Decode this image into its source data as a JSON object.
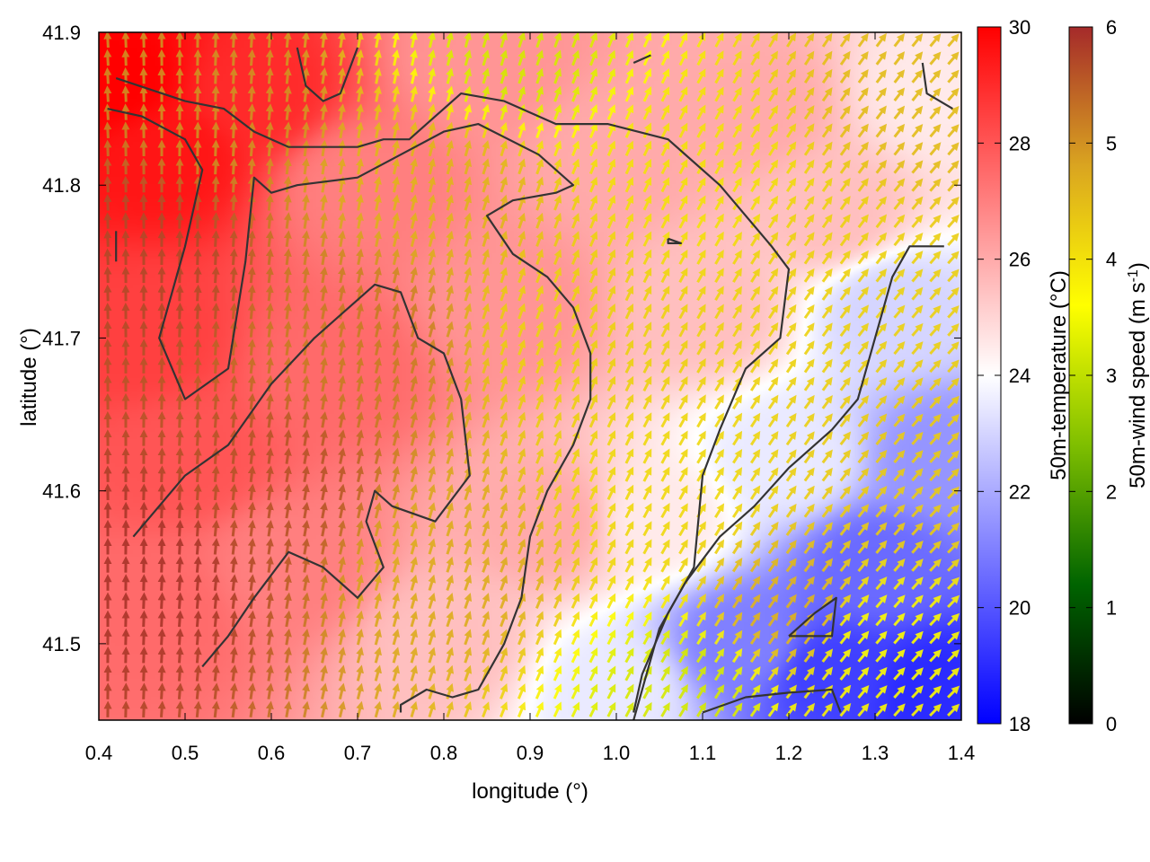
{
  "chart_data": {
    "type": "heatmap",
    "title": "",
    "xlabel": "longitude (°)",
    "ylabel": "latitude (°)",
    "xlim": [
      0.4,
      1.4
    ],
    "ylim": [
      41.45,
      41.9
    ],
    "x_ticks": [
      "0.4",
      "0.5",
      "0.6",
      "0.7",
      "0.8",
      "0.9",
      "1.0",
      "1.1",
      "1.2",
      "1.3",
      "1.4"
    ],
    "y_ticks": [
      "41.5",
      "41.6",
      "41.7",
      "41.8",
      "41.9"
    ],
    "grid": false,
    "overlays": [
      "contour lines",
      "wind vectors colored by speed"
    ],
    "temperature_colorbar": {
      "label": "50m-temperature (°C)",
      "range": [
        18,
        30
      ],
      "ticks": [
        "18",
        "20",
        "22",
        "24",
        "26",
        "28",
        "30"
      ],
      "colors": [
        "#0000ff",
        "#ffffff",
        "#ff0000"
      ]
    },
    "windspeed_colorbar": {
      "label_main": "50m-wind speed (m s",
      "label_sup": "-1",
      "label_end": ")",
      "range": [
        0,
        6
      ],
      "ticks": [
        "0",
        "1",
        "2",
        "3",
        "4",
        "5",
        "6"
      ],
      "colors": [
        "#000000",
        "#006400",
        "#7fbf00",
        "#ffff00",
        "#daa520",
        "#a52a2a"
      ]
    },
    "temperature_field_anchors": [
      {
        "lon": 0.42,
        "lat": 41.87,
        "t": 30.0
      },
      {
        "lon": 0.48,
        "lat": 41.82,
        "t": 29.5
      },
      {
        "lon": 0.58,
        "lat": 41.86,
        "t": 29.0
      },
      {
        "lon": 0.45,
        "lat": 41.7,
        "t": 28.5
      },
      {
        "lon": 0.5,
        "lat": 41.62,
        "t": 28.0
      },
      {
        "lon": 0.47,
        "lat": 41.52,
        "t": 27.5
      },
      {
        "lon": 0.62,
        "lat": 41.55,
        "t": 27.0
      },
      {
        "lon": 0.7,
        "lat": 41.8,
        "t": 27.0
      },
      {
        "lon": 0.68,
        "lat": 41.68,
        "t": 27.5
      },
      {
        "lon": 0.85,
        "lat": 41.88,
        "t": 26.5
      },
      {
        "lon": 0.88,
        "lat": 41.72,
        "t": 26.5
      },
      {
        "lon": 1.0,
        "lat": 41.82,
        "t": 26.0
      },
      {
        "lon": 0.92,
        "lat": 41.58,
        "t": 26.0
      },
      {
        "lon": 0.8,
        "lat": 41.5,
        "t": 25.5
      },
      {
        "lon": 1.1,
        "lat": 41.72,
        "t": 25.5
      },
      {
        "lon": 1.15,
        "lat": 41.85,
        "t": 26.0
      },
      {
        "lon": 1.25,
        "lat": 41.78,
        "t": 25.5
      },
      {
        "lon": 1.05,
        "lat": 41.58,
        "t": 24.5
      },
      {
        "lon": 1.0,
        "lat": 41.47,
        "t": 23.5
      },
      {
        "lon": 1.2,
        "lat": 41.62,
        "t": 23.5
      },
      {
        "lon": 1.32,
        "lat": 41.72,
        "t": 23.0
      },
      {
        "lon": 1.38,
        "lat": 41.62,
        "t": 21.5
      },
      {
        "lon": 1.3,
        "lat": 41.55,
        "t": 20.5
      },
      {
        "lon": 1.25,
        "lat": 41.48,
        "t": 19.5
      },
      {
        "lon": 1.15,
        "lat": 41.5,
        "t": 21.0
      },
      {
        "lon": 1.37,
        "lat": 41.47,
        "t": 19.0
      },
      {
        "lon": 1.38,
        "lat": 41.86,
        "t": 24.5
      }
    ],
    "wind_speed_anchors": [
      {
        "lon": 0.45,
        "lat": 41.55,
        "s": 5.9
      },
      {
        "lon": 0.45,
        "lat": 41.75,
        "s": 5.7
      },
      {
        "lon": 0.55,
        "lat": 41.85,
        "s": 5.0
      },
      {
        "lon": 0.6,
        "lat": 41.6,
        "s": 5.6
      },
      {
        "lon": 0.7,
        "lat": 41.7,
        "s": 5.2
      },
      {
        "lon": 0.8,
        "lat": 41.8,
        "s": 4.6
      },
      {
        "lon": 0.88,
        "lat": 41.88,
        "s": 3.2
      },
      {
        "lon": 0.8,
        "lat": 41.55,
        "s": 4.7
      },
      {
        "lon": 0.95,
        "lat": 41.7,
        "s": 4.2
      },
      {
        "lon": 1.05,
        "lat": 41.6,
        "s": 4.1
      },
      {
        "lon": 1.1,
        "lat": 41.8,
        "s": 4.0
      },
      {
        "lon": 1.25,
        "lat": 41.75,
        "s": 4.2
      },
      {
        "lon": 1.35,
        "lat": 41.85,
        "s": 4.5
      },
      {
        "lon": 1.2,
        "lat": 41.52,
        "s": 4.6
      },
      {
        "lon": 1.08,
        "lat": 41.47,
        "s": 3.2
      },
      {
        "lon": 1.3,
        "lat": 41.5,
        "s": 3.6
      },
      {
        "lon": 1.35,
        "lat": 41.6,
        "s": 4.3
      }
    ],
    "contours": [
      [
        [
          0.42,
          41.87
        ],
        [
          0.5,
          41.855
        ],
        [
          0.545,
          41.85
        ],
        [
          0.58,
          41.835
        ],
        [
          0.62,
          41.825
        ],
        [
          0.7,
          41.825
        ],
        [
          0.73,
          41.83
        ],
        [
          0.76,
          41.83
        ],
        [
          0.79,
          41.845
        ],
        [
          0.82,
          41.86
        ],
        [
          0.87,
          41.855
        ],
        [
          0.93,
          41.84
        ],
        [
          0.99,
          41.84
        ],
        [
          1.06,
          41.83
        ],
        [
          1.12,
          41.8
        ],
        [
          1.18,
          41.76
        ],
        [
          1.2,
          41.745
        ],
        [
          1.19,
          41.7
        ],
        [
          1.15,
          41.68
        ],
        [
          1.12,
          41.64
        ],
        [
          1.1,
          41.61
        ],
        [
          1.09,
          41.55
        ],
        [
          1.06,
          41.52
        ],
        [
          1.03,
          41.48
        ],
        [
          1.02,
          41.455
        ]
      ],
      [
        [
          0.41,
          41.85
        ],
        [
          0.45,
          41.845
        ],
        [
          0.5,
          41.83
        ],
        [
          0.52,
          41.81
        ],
        [
          0.5,
          41.76
        ],
        [
          0.47,
          41.7
        ],
        [
          0.5,
          41.66
        ],
        [
          0.55,
          41.68
        ],
        [
          0.57,
          41.75
        ],
        [
          0.58,
          41.805
        ],
        [
          0.6,
          41.795
        ],
        [
          0.63,
          41.8
        ],
        [
          0.7,
          41.805
        ],
        [
          0.75,
          41.82
        ],
        [
          0.8,
          41.835
        ],
        [
          0.84,
          41.84
        ],
        [
          0.91,
          41.82
        ],
        [
          0.95,
          41.8
        ],
        [
          0.93,
          41.795
        ],
        [
          0.88,
          41.79
        ],
        [
          0.85,
          41.78
        ],
        [
          0.88,
          41.755
        ],
        [
          0.92,
          41.74
        ],
        [
          0.95,
          41.72
        ],
        [
          0.97,
          41.69
        ],
        [
          0.97,
          41.66
        ],
        [
          0.95,
          41.63
        ],
        [
          0.92,
          41.6
        ],
        [
          0.9,
          41.57
        ],
        [
          0.89,
          41.53
        ],
        [
          0.87,
          41.5
        ],
        [
          0.84,
          41.47
        ],
        [
          0.81,
          41.465
        ],
        [
          0.78,
          41.47
        ],
        [
          0.75,
          41.46
        ],
        [
          0.75,
          41.455
        ]
      ],
      [
        [
          0.44,
          41.57
        ],
        [
          0.5,
          41.61
        ],
        [
          0.55,
          41.63
        ],
        [
          0.6,
          41.67
        ],
        [
          0.65,
          41.7
        ],
        [
          0.69,
          41.72
        ],
        [
          0.72,
          41.735
        ],
        [
          0.75,
          41.73
        ],
        [
          0.77,
          41.7
        ],
        [
          0.8,
          41.69
        ],
        [
          0.82,
          41.66
        ],
        [
          0.83,
          41.61
        ],
        [
          0.79,
          41.58
        ],
        [
          0.74,
          41.59
        ],
        [
          0.72,
          41.6
        ],
        [
          0.71,
          41.58
        ],
        [
          0.73,
          41.55
        ],
        [
          0.7,
          41.53
        ],
        [
          0.66,
          41.55
        ],
        [
          0.62,
          41.56
        ],
        [
          0.58,
          41.53
        ],
        [
          0.55,
          41.505
        ],
        [
          0.52,
          41.485
        ]
      ],
      [
        [
          1.02,
          41.45
        ],
        [
          1.05,
          41.51
        ],
        [
          1.08,
          41.54
        ],
        [
          1.12,
          41.57
        ],
        [
          1.16,
          41.59
        ],
        [
          1.2,
          41.615
        ],
        [
          1.23,
          41.63
        ],
        [
          1.25,
          41.64
        ],
        [
          1.28,
          41.66
        ],
        [
          1.3,
          41.7
        ],
        [
          1.32,
          41.74
        ],
        [
          1.34,
          41.76
        ],
        [
          1.38,
          41.76
        ]
      ],
      [
        [
          1.2,
          41.505
        ],
        [
          1.25,
          41.505
        ],
        [
          1.255,
          41.53
        ],
        [
          1.23,
          41.52
        ],
        [
          1.2,
          41.505
        ]
      ],
      [
        [
          1.1,
          41.455
        ],
        [
          1.15,
          41.465
        ],
        [
          1.2,
          41.468
        ],
        [
          1.25,
          41.47
        ],
        [
          1.26,
          41.455
        ]
      ],
      [
        [
          0.63,
          41.89
        ],
        [
          0.64,
          41.865
        ],
        [
          0.66,
          41.855
        ],
        [
          0.68,
          41.86
        ],
        [
          0.69,
          41.875
        ],
        [
          0.7,
          41.89
        ]
      ],
      [
        [
          1.02,
          41.88
        ],
        [
          1.04,
          41.885
        ]
      ],
      [
        [
          1.355,
          41.88
        ],
        [
          1.36,
          41.86
        ],
        [
          1.39,
          41.85
        ]
      ],
      [
        [
          1.06,
          41.765
        ],
        [
          1.075,
          41.762
        ],
        [
          1.06,
          41.762
        ],
        [
          1.06,
          41.765
        ]
      ],
      [
        [
          0.42,
          41.77
        ],
        [
          0.42,
          41.75
        ]
      ]
    ]
  }
}
